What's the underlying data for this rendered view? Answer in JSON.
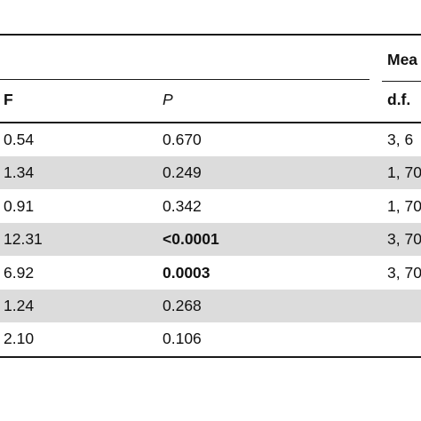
{
  "table": {
    "group_header": "Mea",
    "columns": {
      "f": "F",
      "p": "P",
      "df": "d.f."
    },
    "rows": [
      {
        "f": "0.54",
        "p": "0.670",
        "p_bold": false,
        "df": "3, 6",
        "shaded": false
      },
      {
        "f": "1.34",
        "p": "0.249",
        "p_bold": false,
        "df": "1, 70",
        "shaded": true
      },
      {
        "f": "0.91",
        "p": "0.342",
        "p_bold": false,
        "df": "1, 70",
        "shaded": false
      },
      {
        "f": "12.31",
        "p": "<0.0001",
        "p_bold": true,
        "df": "3, 70",
        "shaded": true
      },
      {
        "f": "6.92",
        "p": "0.0003",
        "p_bold": true,
        "df": "3, 70",
        "shaded": false
      },
      {
        "f": "1.24",
        "p": "0.268",
        "p_bold": false,
        "df": "",
        "shaded": true
      },
      {
        "f": "2.10",
        "p": "0.106",
        "p_bold": false,
        "df": "",
        "shaded": false
      }
    ],
    "shade_color": "#dcdcdc"
  }
}
